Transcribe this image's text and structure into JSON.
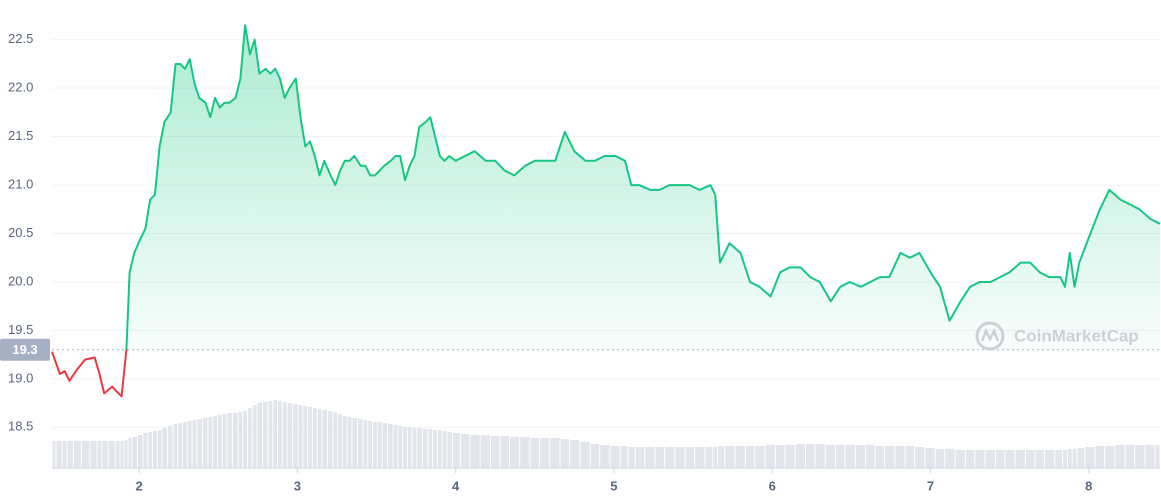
{
  "chart_data": {
    "type": "line",
    "xlim": [
      1.45,
      8.45
    ],
    "xticks": [
      2,
      3,
      4,
      5,
      6,
      7,
      8
    ],
    "ylim": [
      18.08,
      22.91
    ],
    "yticks": [
      18.5,
      {
        "value": 19,
        "label": "19.0"
      },
      19.5,
      {
        "value": 20,
        "label": "20.0"
      },
      20.5,
      {
        "value": 21,
        "label": "21.0"
      },
      21.5,
      {
        "value": 22,
        "label": "22.0"
      },
      22.5
    ],
    "grid": true,
    "baseline": 19.3,
    "colors": {
      "up": "#16c784",
      "down": "#ea3943",
      "volume": "#e3e5ec"
    },
    "watermark": "CoinMarketCap",
    "x": [
      1.45,
      1.5,
      1.53,
      1.56,
      1.61,
      1.66,
      1.72,
      1.75,
      1.78,
      1.83,
      1.87,
      1.89,
      1.92,
      1.94,
      1.97,
      2.01,
      2.04,
      2.07,
      2.1,
      2.13,
      2.16,
      2.2,
      2.23,
      2.26,
      2.29,
      2.32,
      2.35,
      2.38,
      2.42,
      2.45,
      2.48,
      2.51,
      2.54,
      2.57,
      2.61,
      2.64,
      2.67,
      2.7,
      2.73,
      2.76,
      2.8,
      2.83,
      2.86,
      2.89,
      2.92,
      2.95,
      2.99,
      3.02,
      3.05,
      3.08,
      3.11,
      3.14,
      3.17,
      3.21,
      3.24,
      3.27,
      3.3,
      3.33,
      3.36,
      3.4,
      3.43,
      3.46,
      3.49,
      3.52,
      3.55,
      3.59,
      3.62,
      3.65,
      3.68,
      3.71,
      3.74,
      3.77,
      3.81,
      3.84,
      3.87,
      3.9,
      3.93,
      3.96,
      4.0,
      4.06,
      4.12,
      4.19,
      4.25,
      4.31,
      4.37,
      4.44,
      4.5,
      4.56,
      4.63,
      4.69,
      4.75,
      4.82,
      4.88,
      4.94,
      5.01,
      5.07,
      5.11,
      5.16,
      5.23,
      5.29,
      5.35,
      5.42,
      5.48,
      5.54,
      5.61,
      5.64,
      5.67,
      5.73,
      5.8,
      5.86,
      5.92,
      5.99,
      6.05,
      6.11,
      6.18,
      6.24,
      6.3,
      6.37,
      6.43,
      6.49,
      6.56,
      6.62,
      6.68,
      6.74,
      6.81,
      6.87,
      6.93,
      7.0,
      7.06,
      7.12,
      7.19,
      7.25,
      7.31,
      7.38,
      7.44,
      7.5,
      7.57,
      7.63,
      7.69,
      7.75,
      7.82,
      7.85,
      7.88,
      7.91,
      7.94,
      8.01,
      8.07,
      8.13,
      8.2,
      8.26,
      8.32,
      8.39,
      8.45
    ],
    "values": [
      19.28,
      19.05,
      19.08,
      18.98,
      19.1,
      19.2,
      19.22,
      19.05,
      18.85,
      18.92,
      18.85,
      18.82,
      19.3,
      20.1,
      20.3,
      20.45,
      20.55,
      20.85,
      20.9,
      21.4,
      21.65,
      21.75,
      22.25,
      22.25,
      22.2,
      22.3,
      22.05,
      21.9,
      21.85,
      21.7,
      21.9,
      21.8,
      21.85,
      21.85,
      21.9,
      22.1,
      22.65,
      22.35,
      22.5,
      22.15,
      22.2,
      22.15,
      22.2,
      22.1,
      21.9,
      22.0,
      22.1,
      21.7,
      21.4,
      21.45,
      21.3,
      21.1,
      21.25,
      21.1,
      21.0,
      21.15,
      21.25,
      21.25,
      21.3,
      21.2,
      21.2,
      21.1,
      21.1,
      21.15,
      21.2,
      21.25,
      21.3,
      21.3,
      21.05,
      21.2,
      21.3,
      21.6,
      21.65,
      21.7,
      21.5,
      21.3,
      21.25,
      21.3,
      21.25,
      21.3,
      21.35,
      21.25,
      21.25,
      21.15,
      21.1,
      21.2,
      21.25,
      21.25,
      21.25,
      21.55,
      21.35,
      21.25,
      21.25,
      21.3,
      21.3,
      21.25,
      21.0,
      21.0,
      20.95,
      20.95,
      21.0,
      21.0,
      21.0,
      20.95,
      21.0,
      20.9,
      20.2,
      20.4,
      20.3,
      20.0,
      19.95,
      19.85,
      20.1,
      20.15,
      20.15,
      20.05,
      20.0,
      19.8,
      19.95,
      20.0,
      19.95,
      20.0,
      20.05,
      20.05,
      20.3,
      20.25,
      20.3,
      20.1,
      19.95,
      19.6,
      19.8,
      19.95,
      20.0,
      20.0,
      20.05,
      20.1,
      20.2,
      20.2,
      20.1,
      20.05,
      20.05,
      19.95,
      20.3,
      19.95,
      20.2,
      20.5,
      20.75,
      20.95,
      20.85,
      20.8,
      20.75,
      20.65,
      20.6
    ],
    "volume_ylim": [
      0,
      100
    ],
    "volume": [
      27,
      27,
      27,
      27,
      27,
      27,
      27,
      27,
      27,
      27,
      27,
      27,
      28,
      30,
      31,
      33,
      35,
      36,
      37,
      38,
      40,
      42,
      44,
      45,
      46,
      47,
      48,
      49,
      50,
      51,
      52,
      53,
      54,
      55,
      55,
      56,
      57,
      60,
      63,
      65,
      66,
      67,
      68,
      67,
      66,
      65,
      64,
      63,
      62,
      61,
      60,
      59,
      58,
      57,
      56,
      54,
      52,
      51,
      50,
      49,
      48,
      47,
      46,
      46,
      45,
      44,
      43,
      42,
      41,
      41,
      40,
      40,
      39,
      39,
      38,
      38,
      37,
      36,
      35,
      34,
      33,
      33,
      32,
      32,
      31,
      31,
      30,
      30,
      30,
      29,
      28,
      26,
      24,
      23,
      22,
      22,
      21,
      21,
      21,
      21,
      21,
      21,
      21,
      21,
      21,
      21,
      22,
      22,
      22,
      22,
      22,
      23,
      23,
      23,
      24,
      24,
      24,
      23,
      23,
      23,
      23,
      23,
      22,
      22,
      22,
      22,
      21,
      20,
      19,
      19,
      18,
      18,
      18,
      18,
      18,
      18,
      18,
      18,
      18,
      18,
      18,
      18,
      19,
      19,
      20,
      21,
      22,
      22,
      23,
      23,
      23,
      23,
      23
    ]
  }
}
